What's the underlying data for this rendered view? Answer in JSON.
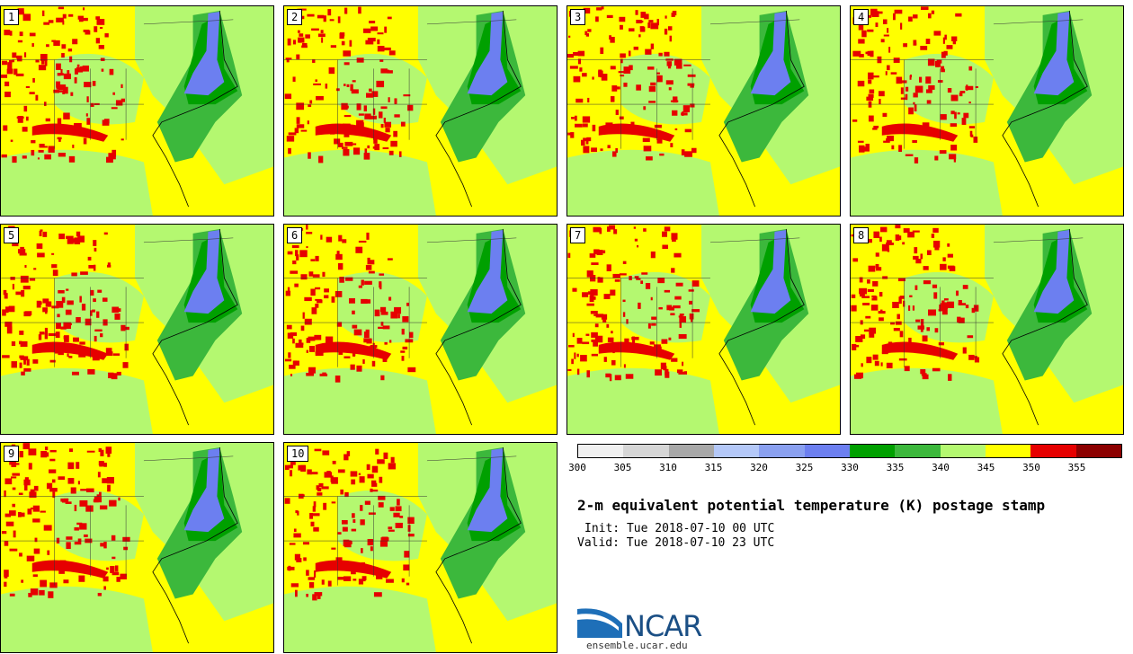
{
  "panels": [
    {
      "label": "1"
    },
    {
      "label": "2"
    },
    {
      "label": "3"
    },
    {
      "label": "4"
    },
    {
      "label": "5"
    },
    {
      "label": "6"
    },
    {
      "label": "7"
    },
    {
      "label": "8"
    },
    {
      "label": "9"
    },
    {
      "label": "10"
    }
  ],
  "colorbar": {
    "colors": [
      "#f0f0f0",
      "#d6d6d6",
      "#a8a8a8",
      "#b4c8f8",
      "#8aa0f0",
      "#6c7ff0",
      "#00a000",
      "#3cb83c",
      "#b4f870",
      "#ffff00",
      "#e60000",
      "#8c0000"
    ],
    "ticks": [
      "300",
      "305",
      "310",
      "315",
      "320",
      "325",
      "330",
      "335",
      "340",
      "345",
      "350",
      "355"
    ]
  },
  "title": "2-m equivalent potential temperature (K) postage stamp",
  "init_text": "Init: Tue 2018-07-10 00 UTC",
  "valid_text": "Valid: Tue 2018-07-10 23 UTC",
  "logo": {
    "text": "NCAR",
    "url": "ensemble.ucar.edu"
  },
  "map_colors": {
    "warm": "#ffff00",
    "moderate": "#b4f870",
    "green": "#3cb83c",
    "darkgreen": "#00a000",
    "blue": "#6c7ff0",
    "red": "#e60000"
  }
}
